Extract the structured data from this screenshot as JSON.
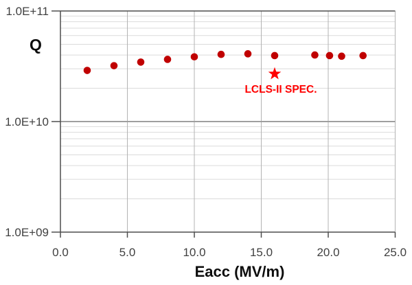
{
  "chart_data": {
    "type": "scatter",
    "title": "",
    "xlabel": "Eacc (MV/m)",
    "ylabel": "Q",
    "x_axis": {
      "min": 0,
      "max": 25,
      "ticks": [
        {
          "value": 0,
          "label": "0.0"
        },
        {
          "value": 5,
          "label": "5.0"
        },
        {
          "value": 10,
          "label": "10.0"
        },
        {
          "value": 15,
          "label": "15.0"
        },
        {
          "value": 20,
          "label": "20.0"
        },
        {
          "value": 25,
          "label": "25.0"
        }
      ]
    },
    "y_axis": {
      "scale": "log",
      "min": 1000000000.0,
      "max": 100000000000.0,
      "ticks": [
        {
          "value": 1000000000.0,
          "label": "1.0E+09"
        },
        {
          "value": 10000000000.0,
          "label": "1.0E+10"
        },
        {
          "value": 100000000000.0,
          "label": "1.0E+11"
        }
      ]
    },
    "grid": {
      "minor_horizontal": true,
      "vertical_at_major_x": true
    },
    "legend": "none",
    "series": [
      {
        "name": "cavity-q-data",
        "marker": "circle",
        "color": "#C00000",
        "points": [
          {
            "x": 2.0,
            "y": 29000000000.0
          },
          {
            "x": 4.0,
            "y": 32000000000.0
          },
          {
            "x": 6.0,
            "y": 34500000000.0
          },
          {
            "x": 8.0,
            "y": 36500000000.0
          },
          {
            "x": 10.0,
            "y": 38500000000.0
          },
          {
            "x": 12.0,
            "y": 40500000000.0
          },
          {
            "x": 14.0,
            "y": 41000000000.0
          },
          {
            "x": 16.0,
            "y": 39500000000.0
          },
          {
            "x": 19.0,
            "y": 40000000000.0
          },
          {
            "x": 20.1,
            "y": 39500000000.0
          },
          {
            "x": 21.0,
            "y": 39000000000.0
          },
          {
            "x": 22.6,
            "y": 39500000000.0
          }
        ]
      },
      {
        "name": "lcls-ii-spec",
        "marker": "star",
        "color": "#FF0000",
        "points": [
          {
            "x": 16.0,
            "y": 27000000000.0
          }
        ]
      }
    ],
    "annotation": {
      "text": "LCLS-II SPEC.",
      "color": "#FF0000"
    }
  },
  "colors": {
    "data_marker": "#C00000",
    "spec_marker": "#FF0000",
    "tick_text": "#404040",
    "axis_line": "#4D4D4D",
    "grid_minor": "#DBDBDB",
    "grid_major": "#9E9E9E",
    "grid_vertical": "#B3B3B3",
    "background": "#FFFFFF"
  }
}
